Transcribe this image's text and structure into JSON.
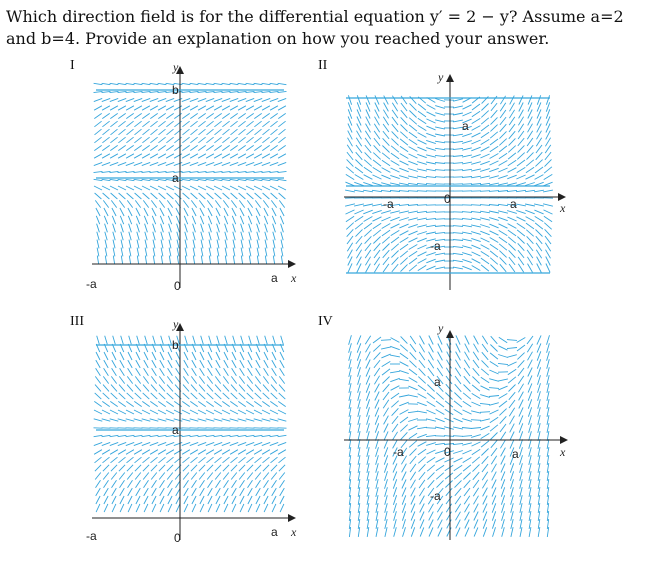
{
  "question": {
    "text": "Which direction field is for the differential equation y′ = 2 − y? Assume a=2 and b=4. Provide an explanation on how you reached your answer."
  },
  "panels": [
    {
      "numeral": "I",
      "axis_labels": {
        "y": "y",
        "x": "x"
      },
      "tick_labels": {
        "neg_a": "-a",
        "zero": "0",
        "a_x": "a",
        "a_y": "a",
        "b_y": "b"
      },
      "color": "#36a6dc"
    },
    {
      "numeral": "II",
      "axis_labels": {
        "y": "y",
        "x": "x"
      },
      "tick_labels": {
        "neg_a_x": "-a",
        "zero": "0",
        "a_x": "a",
        "a_y": "a",
        "neg_a_y": "-a"
      },
      "color": "#36a6dc"
    },
    {
      "numeral": "III",
      "axis_labels": {
        "y": "y",
        "x": "x"
      },
      "tick_labels": {
        "neg_a": "-a",
        "zero": "0",
        "a_x": "a",
        "a_y": "a",
        "b_y": "b"
      },
      "color": "#36a6dc"
    },
    {
      "numeral": "IV",
      "axis_labels": {
        "y": "y",
        "x": "x"
      },
      "tick_labels": {
        "neg_a_x": "-a",
        "zero": "0",
        "a_x": "a",
        "a_y": "a",
        "neg_a_y": "-a"
      },
      "color": "#36a6dc"
    }
  ]
}
